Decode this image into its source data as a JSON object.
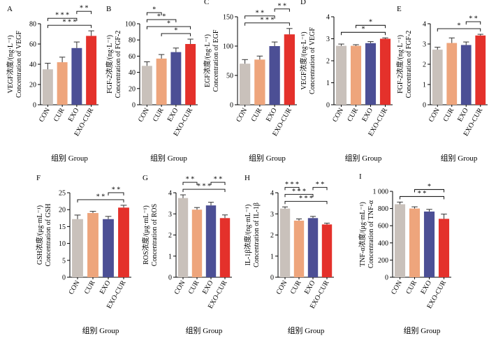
{
  "colors": {
    "CON": "#c9c1bb",
    "CUR": "#eea57c",
    "EXO": "#4c4f95",
    "EXO-CUR": "#e4312b"
  },
  "chart_data": [
    {
      "type": "bar",
      "letter": "A",
      "categories": [
        "CON",
        "CUR",
        "EXO",
        "EXO-CUR"
      ],
      "values": [
        35,
        42,
        56,
        68
      ],
      "errors": [
        6,
        5,
        6,
        5
      ],
      "ylabel_zh": "VEGF浓度/(ng·L⁻¹)",
      "ylabel_en": "Concentration of VEGF",
      "xlabel": "组别 Group",
      "ylim": [
        0,
        80
      ],
      "yticks": [
        "0",
        "20",
        "40",
        "60",
        "80"
      ],
      "brackets": [
        {
          "a": 0,
          "b": 3,
          "stars": "* * *"
        },
        {
          "a": 0,
          "b": 2,
          "stars": "* * *"
        },
        {
          "a": 2,
          "b": 3,
          "stars": "* *"
        }
      ]
    },
    {
      "type": "bar",
      "letter": "B",
      "categories": [
        "CON",
        "CUR",
        "EXO",
        "EXO-CUR"
      ],
      "values": [
        48,
        57,
        65,
        75
      ],
      "errors": [
        5,
        5,
        5,
        6
      ],
      "ylabel_zh": "FGF-2浓度/(ng·L⁻¹)",
      "ylabel_en": "Concentration of FGF-2",
      "xlabel": "组别 Group",
      "ylim": [
        0,
        100
      ],
      "yticks": [
        "0",
        "20",
        "40",
        "60",
        "80",
        "100"
      ],
      "brackets": [
        {
          "a": 1,
          "b": 3,
          "stars": "*"
        },
        {
          "a": 0,
          "b": 3,
          "stars": "*"
        },
        {
          "a": 0,
          "b": 2,
          "stars": "* *"
        },
        {
          "a": 0,
          "b": 1,
          "stars": "*"
        }
      ]
    },
    {
      "type": "bar",
      "letter": "C",
      "categories": [
        "CON",
        "CUR",
        "EXO",
        "EXO-CUR"
      ],
      "values": [
        70,
        77,
        100,
        120
      ],
      "errors": [
        7,
        6,
        7,
        10
      ],
      "ylabel_zh": "EGF浓度/(ng·L⁻¹)",
      "ylabel_en": "Concentration of EGF",
      "xlabel": "组别 Group",
      "ylim": [
        0,
        150
      ],
      "yticks": [
        "0",
        "50",
        "100",
        "150"
      ],
      "brackets": [
        {
          "a": 0,
          "b": 3,
          "stars": "* * *"
        },
        {
          "a": 0,
          "b": 2,
          "stars": "* *"
        },
        {
          "a": 2,
          "b": 3,
          "stars": "* *"
        }
      ]
    },
    {
      "type": "bar",
      "letter": "D",
      "categories": [
        "CON",
        "CUR",
        "EXO",
        "EXO-CUR"
      ],
      "values": [
        2.68,
        2.68,
        2.8,
        3.0
      ],
      "errors": [
        0.08,
        0.05,
        0.07,
        0.04
      ],
      "ylabel_zh": "VEGF浓度/(ng·L⁻¹)",
      "ylabel_en": "Concentration of VEGF",
      "xlabel": "组别 Group",
      "ylim": [
        0,
        4
      ],
      "yticks": [
        "0",
        "1",
        "2",
        "3",
        "4"
      ],
      "brackets": [
        {
          "a": 0,
          "b": 3,
          "stars": "*"
        },
        {
          "a": 1,
          "b": 3,
          "stars": "*"
        }
      ]
    },
    {
      "type": "bar",
      "letter": "E",
      "categories": [
        "CON",
        "CUR",
        "EXO",
        "EXO-CUR"
      ],
      "values": [
        2.72,
        3.05,
        2.95,
        3.42
      ],
      "errors": [
        0.12,
        0.25,
        0.15,
        0.06
      ],
      "ylabel_zh": "FGF-2浓度/(ng·L⁻¹)",
      "ylabel_en": "Concentration of FGF-2",
      "xlabel": "组别 Group",
      "ylim": [
        0,
        4
      ],
      "yticks": [
        "0",
        "1",
        "2",
        "3",
        "4"
      ],
      "brackets": [
        {
          "a": 0,
          "b": 3,
          "stars": "*"
        },
        {
          "a": 2,
          "b": 3,
          "stars": "* *"
        }
      ]
    },
    {
      "type": "bar",
      "letter": "F",
      "categories": [
        "CON",
        "CUR",
        "EXO",
        "EXO-CUR"
      ],
      "values": [
        17.2,
        19,
        17.2,
        20.6
      ],
      "errors": [
        1.2,
        0.5,
        0.8,
        0.7
      ],
      "ylabel_zh": "GSH浓度/(μg·mL⁻¹)",
      "ylabel_en": "Concentration of GSH",
      "xlabel": "组别 Group",
      "ylim": [
        0,
        25
      ],
      "yticks": [
        "0",
        "5",
        "10",
        "15",
        "20",
        "25"
      ],
      "brackets": [
        {
          "a": 0,
          "b": 3,
          "stars": "* *"
        },
        {
          "a": 2,
          "b": 3,
          "stars": "* *"
        }
      ]
    },
    {
      "type": "bar",
      "letter": "G",
      "categories": [
        "CON",
        "CUR",
        "EXO",
        "EXO-CUR"
      ],
      "values": [
        3.75,
        3.2,
        3.4,
        2.8
      ],
      "errors": [
        0.15,
        0.1,
        0.15,
        0.15
      ],
      "ylabel_zh": "ROS浓度/(μg·mL⁻¹)",
      "ylabel_en": "Concentration of ROS",
      "xlabel": "组别 Group",
      "ylim": [
        0,
        4
      ],
      "yticks": [
        "0",
        "1",
        "2",
        "3",
        "4"
      ],
      "brackets": [
        {
          "a": 0,
          "b": 3,
          "stars": "* * *"
        },
        {
          "a": 0,
          "b": 1,
          "stars": "* *"
        },
        {
          "a": 2,
          "b": 3,
          "stars": "* *"
        }
      ]
    },
    {
      "type": "bar",
      "letter": "H",
      "categories": [
        "CON",
        "CUR",
        "EXO",
        "EXO-CUR"
      ],
      "values": [
        3.25,
        2.68,
        2.8,
        2.5
      ],
      "errors": [
        0.08,
        0.08,
        0.08,
        0.06
      ],
      "ylabel_zh": "IL-1β浓度/(ng·mL⁻¹)",
      "ylabel_en": "Concentration of IL-1β",
      "xlabel": "组别 Group",
      "ylim": [
        0,
        4
      ],
      "yticks": [
        "0",
        "1",
        "2",
        "3",
        "4"
      ],
      "brackets": [
        {
          "a": 0,
          "b": 3,
          "stars": "* * *"
        },
        {
          "a": 0,
          "b": 2,
          "stars": "* * *"
        },
        {
          "a": 0,
          "b": 1,
          "stars": "* * *"
        },
        {
          "a": 2,
          "b": 3,
          "stars": "* *"
        }
      ]
    },
    {
      "type": "bar",
      "letter": "I",
      "categories": [
        "CON",
        "CUR",
        "EXO",
        "EXO-CUR"
      ],
      "values": [
        850,
        800,
        765,
        680
      ],
      "errors": [
        25,
        20,
        25,
        55
      ],
      "ylabel_zh": "TNF-α浓度/(μg·mL⁻¹)",
      "ylabel_en": "Concentration of TNF-α",
      "xlabel": "组别 Group",
      "ylim": [
        0,
        1000
      ],
      "yticks": [
        "0",
        "200",
        "400",
        "600",
        "800",
        "1 000"
      ],
      "brackets": [
        {
          "a": 0,
          "b": 3,
          "stars": "* *"
        },
        {
          "a": 1,
          "b": 3,
          "stars": "*"
        }
      ]
    }
  ]
}
